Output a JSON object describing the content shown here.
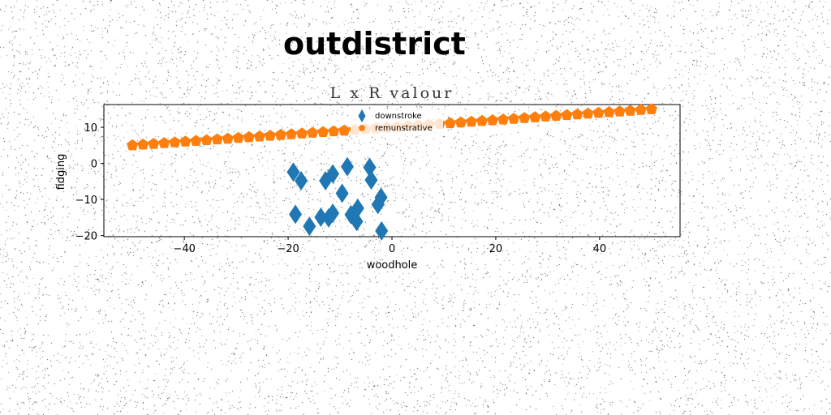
{
  "page_title": "outdistrict",
  "chart_data": {
    "type": "scatter",
    "title": "L x R valour",
    "xlabel": "woodhole",
    "ylabel": "fidging",
    "xlim": [
      -55.5,
      55.5
    ],
    "ylim": [
      -20.3,
      16.3
    ],
    "xticks": [
      -40,
      -20,
      0,
      20,
      40
    ],
    "yticks": [
      -20,
      -10,
      0,
      10
    ],
    "grid": false,
    "legend": {
      "placement": "top-center",
      "frame": false
    },
    "series": [
      {
        "name": "downstroke",
        "marker": "thin_diamond",
        "color": "#1f77b4",
        "points": [
          [
            -19,
            -2.4
          ],
          [
            -17.5,
            -4.8
          ],
          [
            -18.6,
            -14.1
          ],
          [
            -15.9,
            -17.4
          ],
          [
            -13.7,
            -14.9
          ],
          [
            -12.8,
            -4.8
          ],
          [
            -12.2,
            -15.1
          ],
          [
            -11.4,
            -2.9
          ],
          [
            -11.4,
            -13.8
          ],
          [
            -9.6,
            -8.3
          ],
          [
            -8.6,
            -0.9
          ],
          [
            -7.9,
            -14.2
          ],
          [
            -6.8,
            -16.1
          ],
          [
            -6.6,
            -12.4
          ],
          [
            -4.3,
            -1.1
          ],
          [
            -4,
            -4.6
          ],
          [
            -2.7,
            -11.4
          ],
          [
            -2.1,
            -9.4
          ],
          [
            -2,
            -18.7
          ]
        ]
      },
      {
        "name": "remunstrative",
        "marker": "pentagon",
        "color": "#ff7f0e",
        "x_start": -50,
        "x_step": 2.0408,
        "count": 50,
        "y_at_x_start": 5,
        "y_at_x_end": 15
      }
    ]
  }
}
